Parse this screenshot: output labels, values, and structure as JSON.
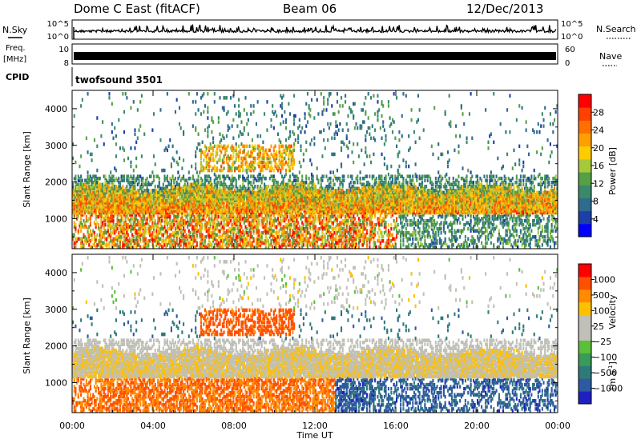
{
  "header": {
    "station": "Dome C East (fitACF)",
    "beam": "Beam 06",
    "date": "12/Dec/2013"
  },
  "strips": {
    "nsky_label": "N.Sky",
    "nsky_ticks": [
      "10^5",
      "10^0"
    ],
    "nsearch_label": "N.Search",
    "nsearch_ticks": [
      "10^5",
      "10^0"
    ],
    "freq_label_line1": "Freq.",
    "freq_label_line2": "[MHz]",
    "freq_ticks": [
      "10",
      "8"
    ],
    "nave_label": "Nave",
    "nave_ticks": [
      "60",
      "0"
    ],
    "cpid_label": "CPID",
    "cpid_value": "twofsound 3501"
  },
  "colors": {
    "nsky_trace": "#000000",
    "gridlines": "#000000",
    "power_scale": [
      "#0000ff",
      "#1c3fa8",
      "#2e6b8e",
      "#3a8a6a",
      "#55a044",
      "#a8c83c",
      "#ffcc00",
      "#ffa000",
      "#ff7000",
      "#ff4000",
      "#ff0000"
    ],
    "velocity_scale": [
      "#2020c0",
      "#2d5aa0",
      "#2e7a7a",
      "#3a9a5a",
      "#5bbf3a",
      "#c0c0b8",
      "#c0c0b8",
      "#ffc000",
      "#ff8c00",
      "#ff5000",
      "#ff0000"
    ]
  },
  "chart_data": [
    {
      "type": "heatmap",
      "panel": "power",
      "ylabel": "Slant Range [km]",
      "xlabel": "",
      "xlim": [
        "00:00",
        "00:00"
      ],
      "ylim": [
        180,
        4500
      ],
      "y_ticks": [
        "1000",
        "2000",
        "3000",
        "4000"
      ],
      "colorbar": {
        "label": "Power [dB]",
        "range": [
          0,
          32
        ],
        "ticks": [
          "28",
          "24",
          "20",
          "16",
          "12",
          "8",
          "4"
        ]
      }
    },
    {
      "type": "heatmap",
      "panel": "velocity",
      "ylabel": "Slant Range [km]",
      "xlabel": "Time UT",
      "xlim": [
        "00:00",
        "00:00"
      ],
      "ylim": [
        180,
        4500
      ],
      "x_ticks": [
        "00:00",
        "04:00",
        "08:00",
        "12:00",
        "16:00",
        "20:00",
        "00:00"
      ],
      "y_ticks": [
        "1000",
        "2000",
        "3000",
        "4000"
      ],
      "colorbar": {
        "label": "Velocity",
        "units": "[m s",
        "units_exp": "-1",
        "units_close": "]",
        "ticks": [
          "1000",
          "500",
          "100",
          "25",
          "−25",
          "−100",
          "−500",
          "−1000"
        ]
      }
    }
  ]
}
